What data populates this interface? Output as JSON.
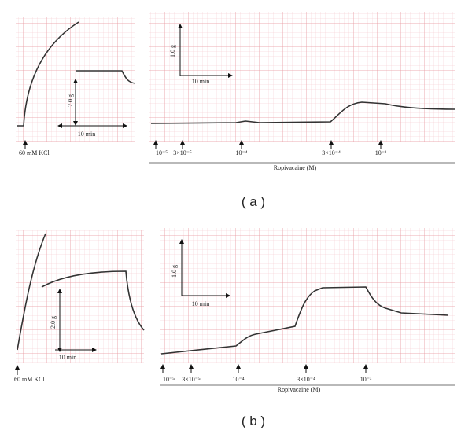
{
  "panels": [
    {
      "label": "( a )",
      "kcl_label": "60 mM KCl",
      "kcl_scale": {
        "force": "2.0 g",
        "time": "10 min"
      },
      "ropi_scale": {
        "force": "1.0 g",
        "time": "10 min"
      },
      "doses": [
        "10⁻⁵",
        "3×10⁻⁵",
        "10⁻⁴",
        "3×10⁻⁴",
        "10⁻³"
      ],
      "drug_label": "Ropivacaine (M)"
    },
    {
      "label": "( b )",
      "kcl_label": "60 mM KCl",
      "kcl_scale": {
        "force": "2.0 g",
        "time": "10 min"
      },
      "ropi_scale": {
        "force": "1.0 g",
        "time": "10 min"
      },
      "doses": [
        "10⁻⁵",
        "3×10⁻⁵",
        "10⁻⁴",
        "3×10⁻⁴",
        "10⁻³"
      ],
      "drug_label": "Ropivacaine (M)"
    }
  ]
}
